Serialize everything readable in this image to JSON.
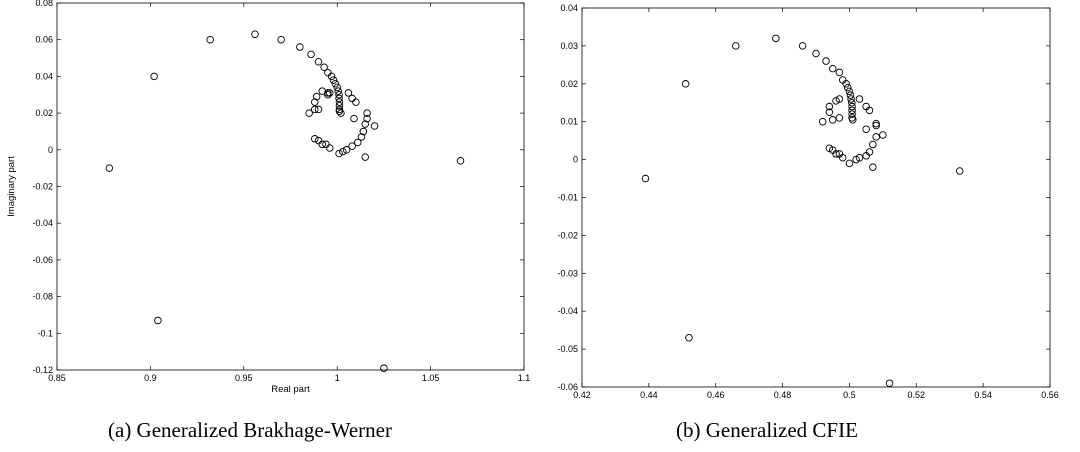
{
  "captions": {
    "a": "(a)  Generalized Brakhage-Werner",
    "b": "(b)  Generalized CFIE"
  },
  "chart_data": [
    {
      "type": "scatter",
      "title": "",
      "xlabel": "Real part",
      "ylabel": "Imaginary part",
      "xlim": [
        0.85,
        1.1
      ],
      "ylim": [
        -0.12,
        0.08
      ],
      "xticks": [
        "0.85",
        "0.9",
        "0.95",
        "1",
        "1.05",
        "1.1"
      ],
      "yticks": [
        "0.08",
        "0.06",
        "0.04",
        "0.02",
        "0",
        "-0.02",
        "-0.04",
        "-0.06",
        "-0.08",
        "-0.1",
        "-0.12"
      ],
      "grid": false,
      "marker": "open-circle",
      "points": [
        [
          0.878,
          -0.01
        ],
        [
          0.902,
          0.04
        ],
        [
          0.904,
          -0.093
        ],
        [
          0.932,
          0.06
        ],
        [
          0.956,
          0.063
        ],
        [
          0.97,
          0.06
        ],
        [
          0.98,
          0.056
        ],
        [
          0.986,
          0.052
        ],
        [
          0.99,
          0.048
        ],
        [
          0.993,
          0.045
        ],
        [
          0.995,
          0.042
        ],
        [
          0.997,
          0.04
        ],
        [
          0.998,
          0.038
        ],
        [
          0.999,
          0.036
        ],
        [
          1.0,
          0.034
        ],
        [
          1.0005,
          0.032
        ],
        [
          1.001,
          0.03
        ],
        [
          1.001,
          0.028
        ],
        [
          1.0012,
          0.026
        ],
        [
          1.0012,
          0.024
        ],
        [
          1.0012,
          0.022
        ],
        [
          1.0012,
          0.021
        ],
        [
          1.002,
          0.02
        ],
        [
          0.996,
          0.031
        ],
        [
          0.995,
          0.03
        ],
        [
          0.992,
          0.032
        ],
        [
          0.989,
          0.029
        ],
        [
          0.988,
          0.026
        ],
        [
          0.99,
          0.022
        ],
        [
          0.988,
          0.022
        ],
        [
          0.985,
          0.02
        ],
        [
          0.995,
          0.031
        ],
        [
          1.006,
          0.031
        ],
        [
          1.008,
          0.028
        ],
        [
          1.01,
          0.026
        ],
        [
          1.009,
          0.017
        ],
        [
          1.016,
          0.02
        ],
        [
          1.016,
          0.017
        ],
        [
          1.015,
          0.014
        ],
        [
          1.02,
          0.013
        ],
        [
          1.014,
          0.01
        ],
        [
          1.013,
          0.007
        ],
        [
          1.011,
          0.004
        ],
        [
          1.008,
          0.002
        ],
        [
          1.005,
          0.0
        ],
        [
          1.003,
          -0.001
        ],
        [
          1.001,
          -0.002
        ],
        [
          1.015,
          -0.004
        ],
        [
          0.988,
          0.006
        ],
        [
          0.99,
          0.005
        ],
        [
          0.992,
          0.003
        ],
        [
          0.994,
          0.003
        ],
        [
          0.996,
          0.001
        ],
        [
          1.066,
          -0.006
        ],
        [
          1.025,
          -0.119
        ]
      ]
    },
    {
      "type": "scatter",
      "title": "",
      "xlabel": "",
      "ylabel": "",
      "xlim": [
        0.42,
        0.56
      ],
      "ylim": [
        -0.06,
        0.04
      ],
      "xticks": [
        "0.42",
        "0.44",
        "0.46",
        "0.48",
        "0.5",
        "0.52",
        "0.54",
        "0.56"
      ],
      "yticks": [
        "0.04",
        "0.03",
        "0.02",
        "0.01",
        "0",
        "-0.01",
        "-0.02",
        "-0.03",
        "-0.04",
        "-0.05",
        "-0.06"
      ],
      "grid": false,
      "marker": "open-circle",
      "points": [
        [
          0.439,
          -0.005
        ],
        [
          0.451,
          0.02
        ],
        [
          0.452,
          -0.047
        ],
        [
          0.466,
          0.03
        ],
        [
          0.478,
          0.032
        ],
        [
          0.486,
          0.03
        ],
        [
          0.49,
          0.028
        ],
        [
          0.493,
          0.026
        ],
        [
          0.495,
          0.024
        ],
        [
          0.497,
          0.023
        ],
        [
          0.498,
          0.021
        ],
        [
          0.499,
          0.02
        ],
        [
          0.4995,
          0.019
        ],
        [
          0.5,
          0.018
        ],
        [
          0.5003,
          0.017
        ],
        [
          0.5005,
          0.016
        ],
        [
          0.5007,
          0.015
        ],
        [
          0.5008,
          0.014
        ],
        [
          0.5008,
          0.013
        ],
        [
          0.5008,
          0.012
        ],
        [
          0.5008,
          0.011
        ],
        [
          0.501,
          0.0105
        ],
        [
          0.497,
          0.016
        ],
        [
          0.496,
          0.0155
        ],
        [
          0.494,
          0.014
        ],
        [
          0.494,
          0.0125
        ],
        [
          0.492,
          0.01
        ],
        [
          0.495,
          0.0105
        ],
        [
          0.497,
          0.011
        ],
        [
          0.503,
          0.016
        ],
        [
          0.505,
          0.014
        ],
        [
          0.506,
          0.013
        ],
        [
          0.505,
          0.008
        ],
        [
          0.508,
          0.0095
        ],
        [
          0.508,
          0.009
        ],
        [
          0.51,
          0.0065
        ],
        [
          0.508,
          0.006
        ],
        [
          0.507,
          0.004
        ],
        [
          0.507,
          -0.002
        ],
        [
          0.506,
          0.002
        ],
        [
          0.505,
          0.001
        ],
        [
          0.503,
          0.0005
        ],
        [
          0.502,
          0.0
        ],
        [
          0.5,
          -0.001
        ],
        [
          0.494,
          0.003
        ],
        [
          0.495,
          0.0025
        ],
        [
          0.496,
          0.0015
        ],
        [
          0.497,
          0.0015
        ],
        [
          0.498,
          0.0005
        ],
        [
          0.533,
          -0.003
        ],
        [
          0.512,
          -0.059
        ]
      ]
    }
  ]
}
